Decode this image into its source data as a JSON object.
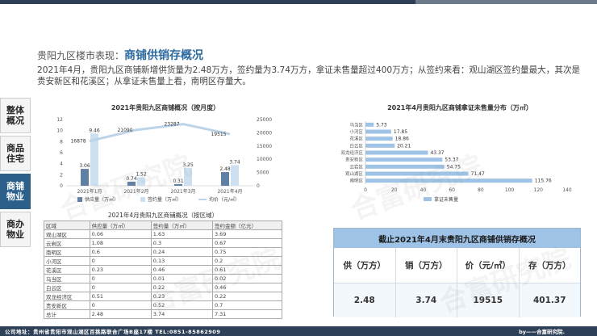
{
  "header": {
    "title_prefix": "贵阳九区楼市表现：",
    "title_main": "商铺供销存概况",
    "paragraph": "2021年4月，贵阳九区商铺新增供货量为2.48万方，签约量为3.74万方，拿证未售量超过400万方；从签约来看：观山湖区签约量最大，其次是贵安新区和花溪区；从拿证未售量上看，南明区存量大。"
  },
  "sidebar": {
    "items": [
      {
        "label": "整体概况"
      },
      {
        "label": "商品住宅"
      },
      {
        "label": "商铺物业"
      },
      {
        "label": "商办物业"
      }
    ]
  },
  "chart_data": [
    {
      "type": "bar",
      "title": "2021年贵阳九区商铺概况（按月度）",
      "categories": [
        "2021年1月",
        "2021年2月",
        "2021年3月",
        "2021年4月"
      ],
      "series": [
        {
          "name": "供应量（万㎡）",
          "values": [
            3.06,
            0.74,
            0.31,
            2.48
          ],
          "color": "#5f7fa3"
        },
        {
          "name": "签约量（万㎡）",
          "values": [
            9.46,
            1.52,
            3.25,
            3.74
          ],
          "color": "#cde0f1"
        },
        {
          "name": "均价（元/㎡）",
          "values": [
            16878,
            21090,
            23287,
            19515
          ],
          "axis": "right",
          "color": "#bdd3e8"
        }
      ],
      "y_left_ticks": [
        "0",
        "2",
        "4",
        "6",
        "8",
        "10",
        "12"
      ],
      "y_right_ticks": [
        "0",
        "5000",
        "10000",
        "15000",
        "20000",
        "25000"
      ],
      "ylim_left": [
        0,
        12
      ],
      "ylim_right": [
        0,
        25000
      ]
    },
    {
      "type": "bar",
      "title": "2021年4月贵阳九区商铺拿证未售量分布（万㎡）",
      "categories": [
        "乌当区",
        "小河区",
        "花溪区",
        "白云区",
        "双龙经济区",
        "贵安新区",
        "云岩区",
        "观山湖区",
        "南明区"
      ],
      "values": [
        5.73,
        17.85,
        18.86,
        20.21,
        43.37,
        53.37,
        54.75,
        71.47,
        115.76
      ],
      "legend": "拿证未售量",
      "x_ticks": [
        "0",
        "20",
        "40",
        "60",
        "80",
        "100",
        "120",
        "140"
      ],
      "xlim": [
        0,
        140
      ],
      "color": "#9ec3e6"
    }
  ],
  "table": {
    "caption": "2021年4月贵阳九区商铺概况（按区域）",
    "headers": [
      "区域",
      "供应量（万㎡）",
      "签约量（万㎡）",
      "签约金额（亿元）"
    ],
    "rows": [
      [
        "观山湖区",
        "0.06",
        "1.63",
        "3.69"
      ],
      [
        "云岩区",
        "1.08",
        "0.3",
        "0.67"
      ],
      [
        "南明区",
        "0.6",
        "0.24",
        "0.75"
      ],
      [
        "小河区",
        "0",
        "0.13",
        "0.2"
      ],
      [
        "花溪区",
        "0.23",
        "0.46",
        "0.61"
      ],
      [
        "乌当区",
        "0",
        "0.01",
        "0.02"
      ],
      [
        "白云区",
        "0",
        "0.22",
        "0.46"
      ],
      [
        "双龙经济区",
        "0.51",
        "0.23",
        "0.22"
      ],
      [
        "贵安新区",
        "0",
        "0.52",
        "0.7"
      ],
      [
        "总计",
        "2.48",
        "3.74",
        "7.31"
      ]
    ]
  },
  "summary": {
    "title": "截止2021年4月末贵阳九区商铺供销存概况",
    "labels": [
      "供（万方）",
      "销（万方）",
      "价（元/㎡）",
      "存（万方）"
    ],
    "values": [
      "2.48",
      "3.74",
      "19515",
      "401.37"
    ]
  },
  "footer": {
    "address": "公司地址：贵州省贵阳市观山湖区百挑路联合广场B座17楼    TEL:0851-85862909",
    "brand": "by——合富研究院."
  },
  "watermark": "合富研究院"
}
